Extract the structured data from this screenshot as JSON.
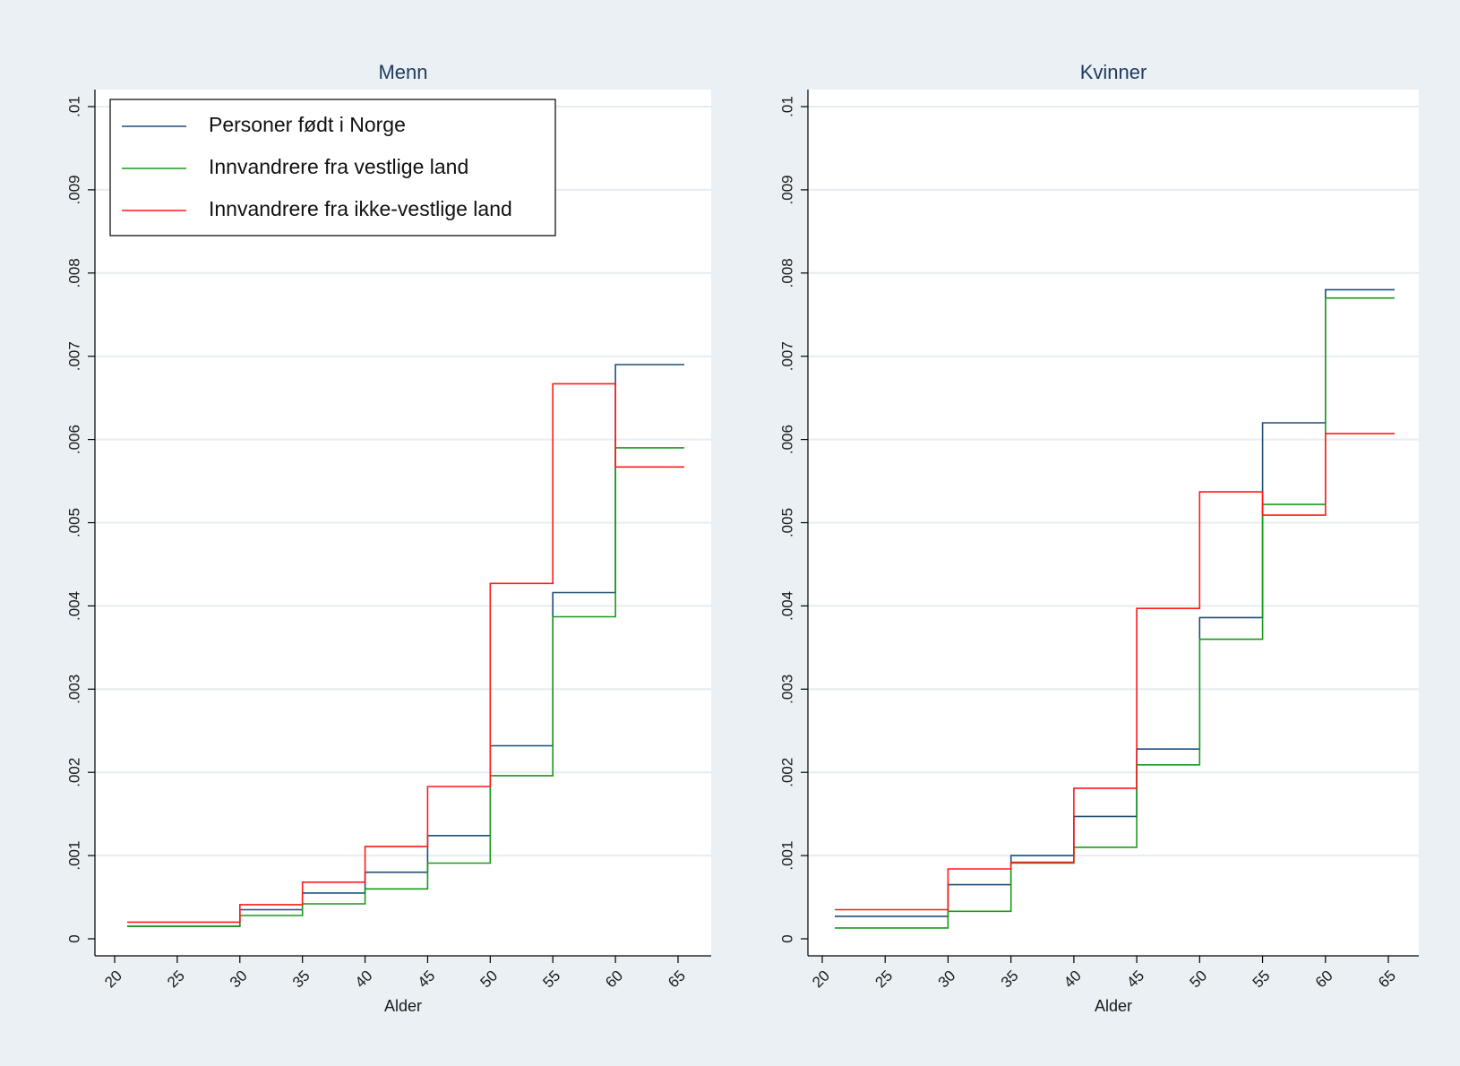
{
  "colors": {
    "outer_background": "#eaf0f3",
    "plot_background": "#ffffff",
    "gridline": "#e6ecef",
    "axis": "#000000",
    "title": "#1f3a5f"
  },
  "legend": {
    "placement": "top-left of first panel",
    "entries": [
      {
        "label": "Personer født i Norge",
        "color": "#1f4e79"
      },
      {
        "label": "Innvandrere fra vestlige land",
        "color": "#1a9a1a"
      },
      {
        "label": "Innvandrere fra ikke-vestlige land",
        "color": "#ff1a1a"
      }
    ]
  },
  "chart_data": [
    {
      "type": "line",
      "step": true,
      "title": "Menn",
      "xlabel": "Alder",
      "ylabel": "",
      "xlim": [
        20,
        66
      ],
      "ylim": [
        0,
        0.01
      ],
      "grid": true,
      "x_ticks": [
        "20",
        "25",
        "30",
        "35",
        "40",
        "45",
        "50",
        "55",
        "60",
        "65"
      ],
      "y_ticks": [
        "0",
        ".001",
        ".002",
        ".003",
        ".004",
        ".005",
        ".006",
        ".007",
        ".008",
        ".009",
        ".01"
      ],
      "x_edges": [
        21,
        30,
        35,
        40,
        45,
        50,
        55,
        60,
        65.5
      ],
      "series": [
        {
          "name": "Personer født i Norge",
          "values": [
            0.00015,
            0.00035,
            0.00055,
            0.0008,
            0.00124,
            0.00232,
            0.00416,
            0.0069
          ]
        },
        {
          "name": "Innvandrere fra vestlige land",
          "values": [
            0.00015,
            0.00028,
            0.00042,
            0.0006,
            0.00091,
            0.00196,
            0.00387,
            0.0059
          ]
        },
        {
          "name": "Innvandrere fra ikke-vestlige land",
          "values": [
            0.0002,
            0.00041,
            0.00068,
            0.00111,
            0.00183,
            0.00427,
            0.00667,
            0.00567
          ]
        }
      ]
    },
    {
      "type": "line",
      "step": true,
      "title": "Kvinner",
      "xlabel": "Alder",
      "ylabel": "",
      "xlim": [
        20,
        66
      ],
      "ylim": [
        0,
        0.01
      ],
      "grid": true,
      "x_ticks": [
        "20",
        "25",
        "30",
        "35",
        "40",
        "45",
        "50",
        "55",
        "60",
        "65"
      ],
      "y_ticks": [
        "0",
        ".001",
        ".002",
        ".003",
        ".004",
        ".005",
        ".006",
        ".007",
        ".008",
        ".009",
        ".01"
      ],
      "x_edges": [
        21,
        30,
        35,
        40,
        45,
        50,
        55,
        60,
        65.5
      ],
      "series": [
        {
          "name": "Personer født i Norge",
          "values": [
            0.00027,
            0.00065,
            0.001,
            0.00147,
            0.00228,
            0.00386,
            0.0062,
            0.0078
          ]
        },
        {
          "name": "Innvandrere fra vestlige land",
          "values": [
            0.00013,
            0.00033,
            0.00091,
            0.0011,
            0.00209,
            0.0036,
            0.00522,
            0.0077
          ]
        },
        {
          "name": "Innvandrere fra ikke-vestlige land",
          "values": [
            0.00035,
            0.00084,
            0.00092,
            0.00181,
            0.00397,
            0.00537,
            0.00509,
            0.00607
          ]
        }
      ]
    }
  ]
}
